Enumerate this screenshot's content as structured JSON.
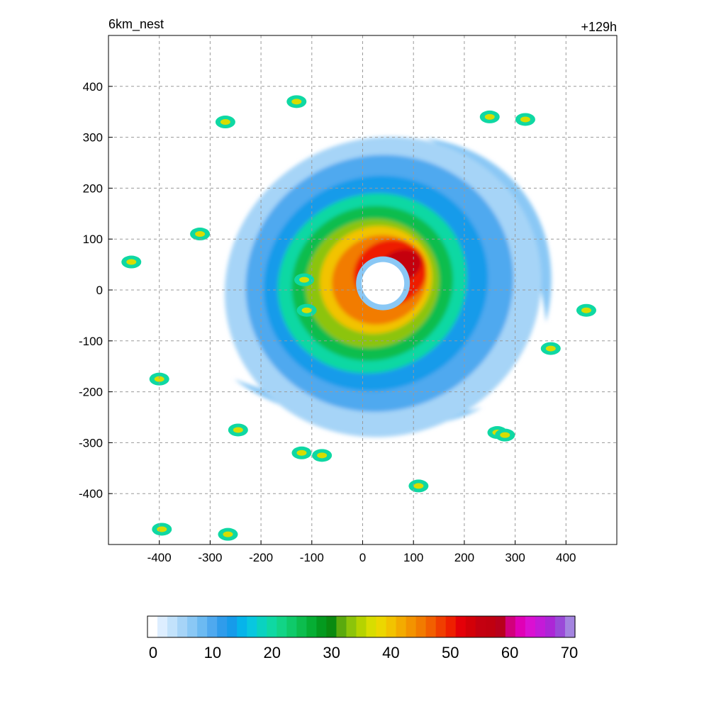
{
  "chart_data": {
    "type": "heatmap",
    "title_left": "6km_nest",
    "title_right": "+129h",
    "xlabel": "",
    "ylabel": "",
    "xlim": [
      -500,
      500
    ],
    "ylim": [
      -500,
      500
    ],
    "x_ticks": [
      -400,
      -300,
      -200,
      -100,
      0,
      100,
      200,
      300,
      400
    ],
    "y_ticks": [
      400,
      300,
      200,
      100,
      0,
      -100,
      -200,
      -300,
      -400
    ],
    "grid": true,
    "colorbar": {
      "ticks": [
        0,
        10,
        20,
        30,
        40,
        50,
        60,
        70
      ],
      "range": [
        0,
        70
      ],
      "colors": [
        "#ffffff",
        "#ddeeff",
        "#c2e2fb",
        "#a6d4f7",
        "#8ac8f5",
        "#6cbaf2",
        "#4fa9ef",
        "#2f9ceb",
        "#169bea",
        "#06b4ea",
        "#08c7df",
        "#0ad2c0",
        "#0fd8a3",
        "#12d486",
        "#0fca6a",
        "#0cbd4e",
        "#06ae34",
        "#049a1f",
        "#0a8a10",
        "#5aaa0e",
        "#8cc40a",
        "#b5d300",
        "#d8dd00",
        "#ecd700",
        "#f2c300",
        "#f3ab00",
        "#f39300",
        "#f27b00",
        "#f25f00",
        "#f03e00",
        "#ee1f00",
        "#e40008",
        "#d30008",
        "#c40010",
        "#c00010",
        "#b8001c",
        "#d2007c",
        "#e000b6",
        "#da10d2",
        "#c41ad8",
        "#ac26d6",
        "#9a4ad8",
        "#a484e0"
      ]
    },
    "series": [
      {
        "kind": "eyewall_max",
        "x_center": 40,
        "y_center": 20,
        "max_value": 55
      }
    ]
  }
}
